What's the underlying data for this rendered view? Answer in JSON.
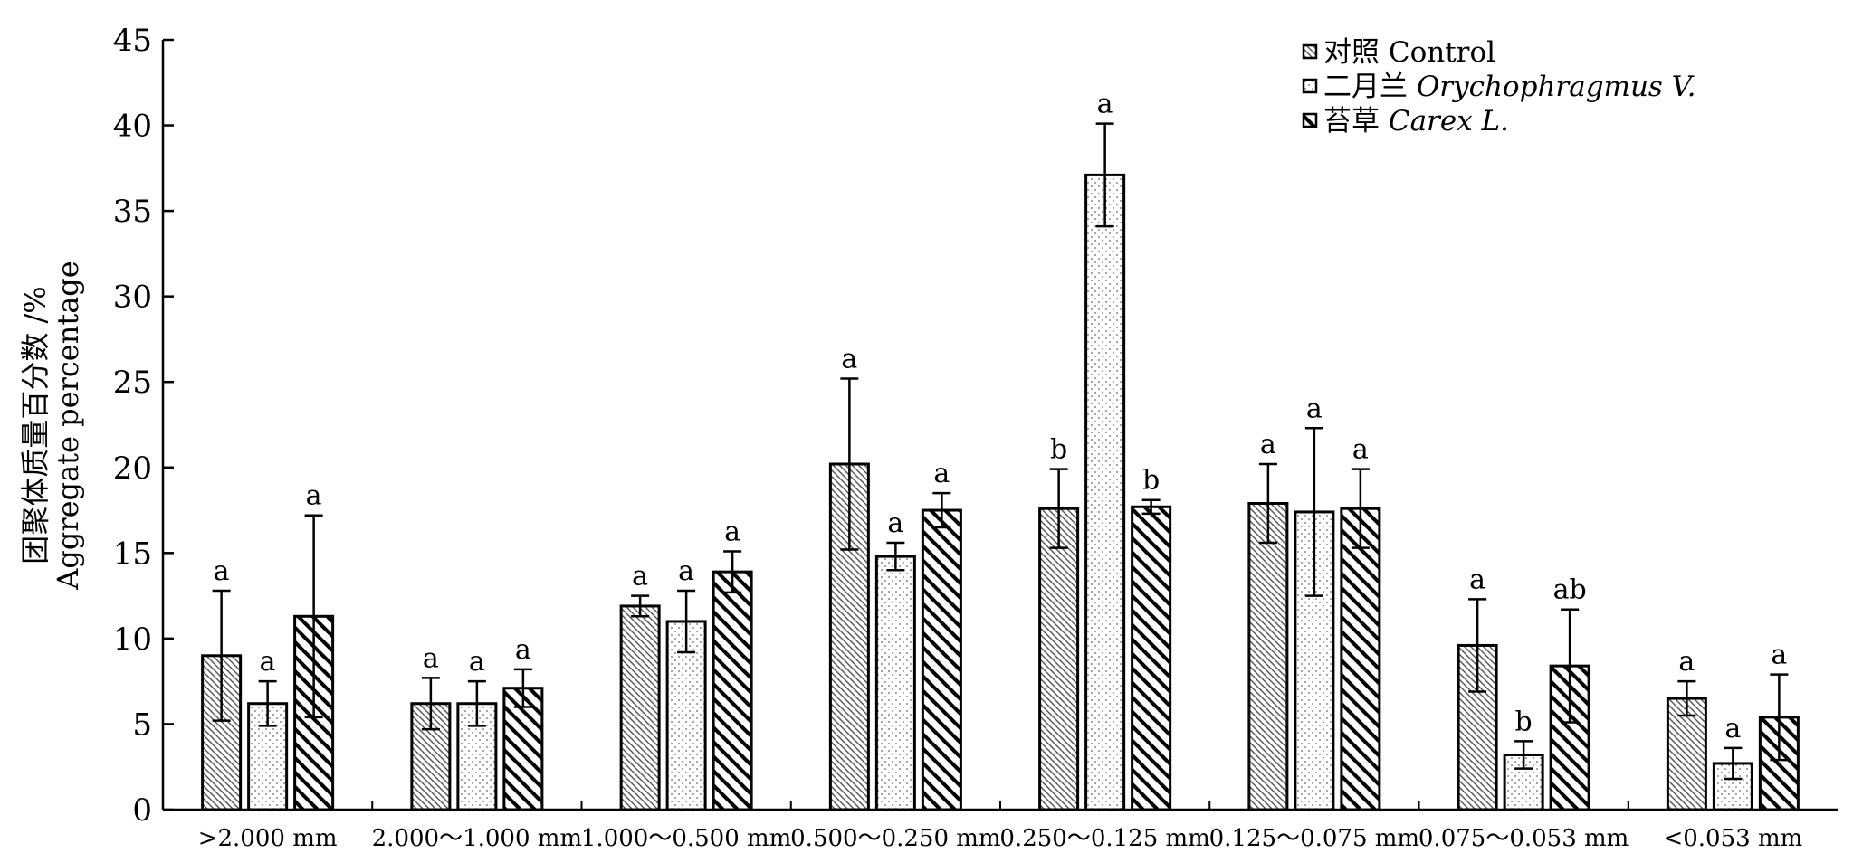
{
  "chart_data": {
    "type": "bar",
    "ylabel": [
      "团聚体质量百分数 /%",
      "Aggregate percentage"
    ],
    "ylim": [
      0,
      45
    ],
    "yticks": [
      0,
      5,
      10,
      15,
      20,
      25,
      30,
      35,
      40,
      45
    ],
    "grid": false,
    "legend_position": "top-right",
    "categories": [
      ">2.000 mm",
      "2.000～1.000 mm",
      "1.000～0.500 mm",
      "0.500～0.250 mm",
      "0.250～0.125 mm",
      "0.125～0.075 mm",
      "0.075～0.053 mm",
      "<0.053 mm"
    ],
    "series": [
      {
        "name": "对照",
        "name_en": "Control",
        "pattern": "dense-diagonal",
        "values": [
          9.0,
          6.2,
          11.9,
          20.2,
          17.6,
          17.9,
          9.6,
          6.5
        ],
        "errors": [
          3.8,
          1.5,
          0.6,
          5.0,
          2.3,
          2.3,
          2.7,
          1.0
        ],
        "labels": [
          "a",
          "a",
          "a",
          "a",
          "b",
          "a",
          "a",
          "a"
        ]
      },
      {
        "name": "二月兰",
        "name_en": "Orychophragmus V.",
        "pattern": "dots",
        "values": [
          6.2,
          6.2,
          11.0,
          14.8,
          37.1,
          17.4,
          3.2,
          2.7
        ],
        "errors": [
          1.3,
          1.3,
          1.8,
          0.8,
          3.0,
          4.9,
          0.8,
          0.9
        ],
        "labels": [
          "a",
          "a",
          "a",
          "a",
          "a",
          "a",
          "b",
          "a"
        ]
      },
      {
        "name": "苔草",
        "name_en": "Carex L.",
        "pattern": "wide-diagonal",
        "values": [
          11.3,
          7.1,
          13.9,
          17.5,
          17.7,
          17.6,
          8.4,
          5.4
        ],
        "errors": [
          5.9,
          1.1,
          1.2,
          1.0,
          0.4,
          2.3,
          3.3,
          2.5
        ],
        "labels": [
          "a",
          "a",
          "a",
          "a",
          "b",
          "a",
          "ab",
          "a"
        ]
      }
    ]
  }
}
